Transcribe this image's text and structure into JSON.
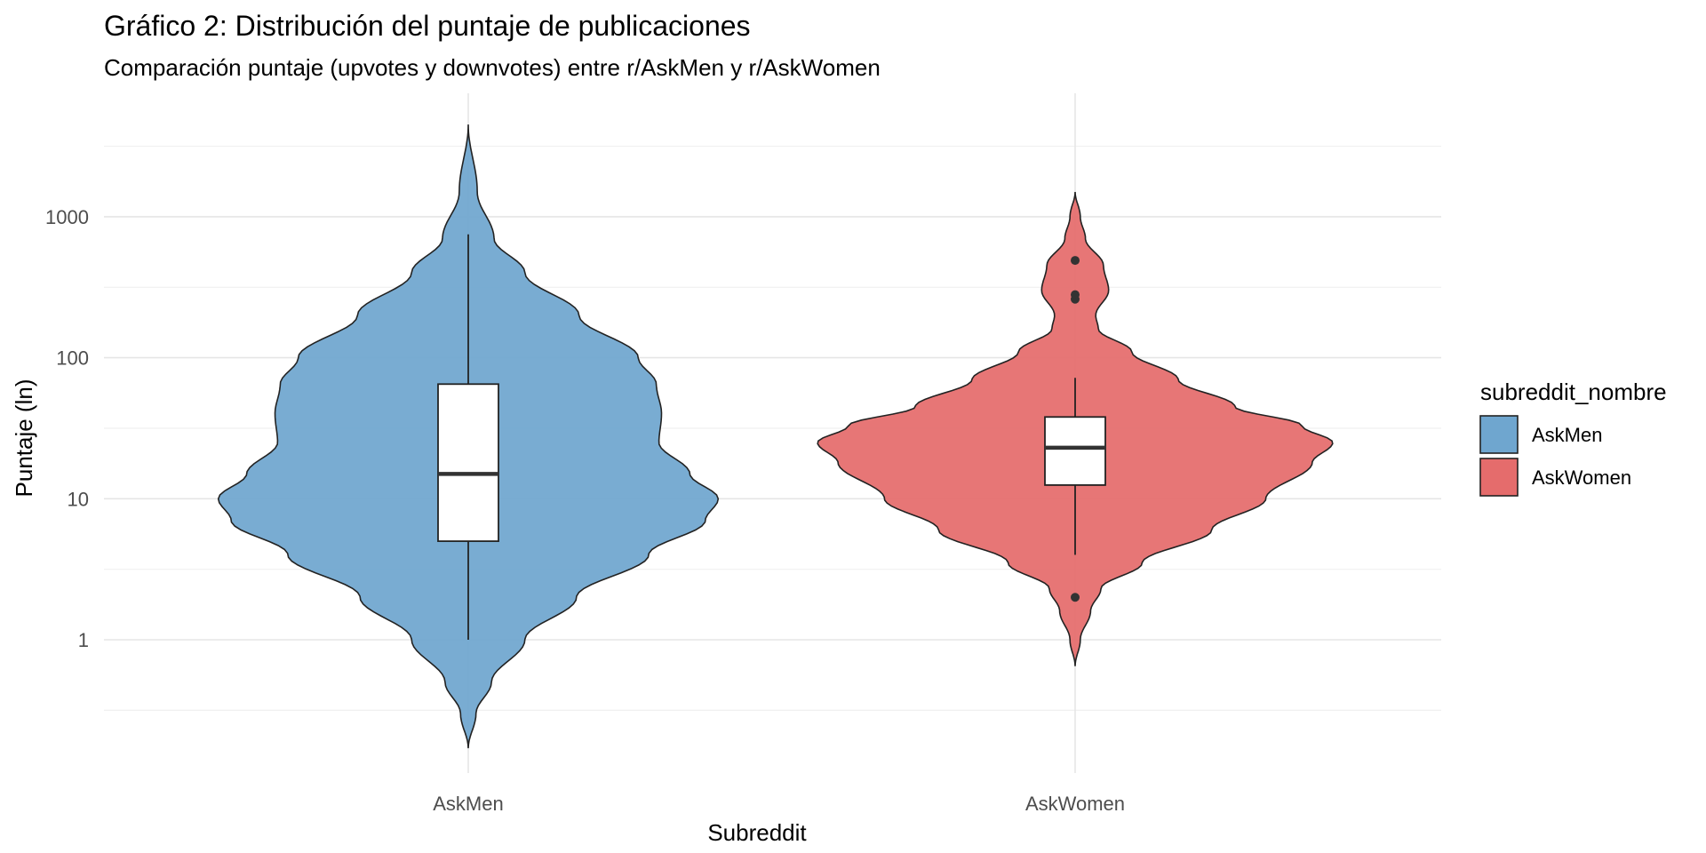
{
  "chart_data": {
    "type": "violin",
    "title": "Gráfico 2: Distribución del puntaje de publicaciones",
    "subtitle": "Comparación puntaje (upvotes y downvotes) entre r/AskMen y r/AskWomen",
    "xlabel": "Subreddit",
    "ylabel": "Puntaje (ln)",
    "y_scale": "log10",
    "ylim": [
      0.1,
      4500
    ],
    "y_ticks": [
      1,
      10,
      100,
      1000
    ],
    "y_tick_labels": [
      "1",
      "10",
      "100",
      "1000"
    ],
    "grid": true,
    "categories": [
      "AskMen",
      "AskWomen"
    ],
    "legend": {
      "title": "subreddit_nombre",
      "position": "right",
      "entries": [
        "AskMen",
        "AskWomen"
      ]
    },
    "series": [
      {
        "name": "AskMen",
        "color": "#6fa6cf",
        "violin_range": [
          0.17,
          4500
        ],
        "density_profile": [
          [
            0.17,
            0.0
          ],
          [
            0.3,
            0.03
          ],
          [
            0.5,
            0.09
          ],
          [
            1,
            0.22
          ],
          [
            2,
            0.42
          ],
          [
            4,
            0.7
          ],
          [
            7,
            0.92
          ],
          [
            10,
            0.97
          ],
          [
            15,
            0.86
          ],
          [
            25,
            0.74
          ],
          [
            40,
            0.75
          ],
          [
            65,
            0.73
          ],
          [
            100,
            0.66
          ],
          [
            200,
            0.43
          ],
          [
            400,
            0.22
          ],
          [
            700,
            0.1
          ],
          [
            1500,
            0.035
          ],
          [
            4500,
            0.0
          ]
        ],
        "box": {
          "q1": 5,
          "median": 15,
          "q3": 65,
          "whisker_low": 1,
          "whisker_high": 750
        },
        "outliers": []
      },
      {
        "name": "AskWomen",
        "color": "#e56c6c",
        "violin_range": [
          0.65,
          1500
        ],
        "density_profile": [
          [
            0.65,
            0.0
          ],
          [
            1,
            0.02
          ],
          [
            1.6,
            0.06
          ],
          [
            2.3,
            0.1
          ],
          [
            3.5,
            0.26
          ],
          [
            6,
            0.53
          ],
          [
            10,
            0.74
          ],
          [
            18,
            0.92
          ],
          [
            25,
            1.0
          ],
          [
            33,
            0.88
          ],
          [
            45,
            0.62
          ],
          [
            70,
            0.4
          ],
          [
            110,
            0.22
          ],
          [
            160,
            0.09
          ],
          [
            200,
            0.08
          ],
          [
            300,
            0.13
          ],
          [
            450,
            0.11
          ],
          [
            700,
            0.04
          ],
          [
            1000,
            0.02
          ],
          [
            1500,
            0.0
          ]
        ],
        "box": {
          "q1": 12.5,
          "median": 23,
          "q3": 38,
          "whisker_low": 4,
          "whisker_high": 72
        },
        "outliers": [
          2,
          260,
          280,
          490
        ]
      }
    ]
  }
}
